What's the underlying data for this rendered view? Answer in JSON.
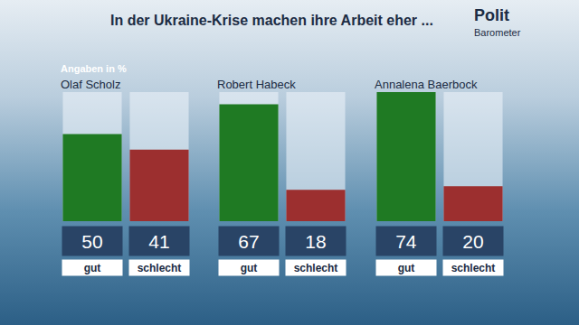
{
  "title": "In der Ukraine-Krise machen ihre Arbeit eher ...",
  "subtitle": "Angaben in %",
  "logo": [
    "Polit",
    "Barometer"
  ],
  "chart_data": [
    {
      "type": "bar",
      "title": "Olaf Scholz",
      "categories": [
        "gut",
        "schlecht"
      ],
      "values": [
        50,
        41
      ],
      "colors": [
        "#1f7a23",
        "#9c2f2f"
      ],
      "ylim": [
        0,
        74
      ],
      "data_labels": true
    },
    {
      "type": "bar",
      "title": "Robert Habeck",
      "categories": [
        "gut",
        "schlecht"
      ],
      "values": [
        67,
        18
      ],
      "colors": [
        "#1f7a23",
        "#9c2f2f"
      ],
      "ylim": [
        0,
        74
      ],
      "data_labels": true
    },
    {
      "type": "bar",
      "title": "Annalena Baerbock",
      "categories": [
        "gut",
        "schlecht"
      ],
      "values": [
        74,
        20
      ],
      "colors": [
        "#1f7a23",
        "#9c2f2f"
      ],
      "ylim": [
        0,
        74
      ],
      "data_labels": true
    }
  ]
}
